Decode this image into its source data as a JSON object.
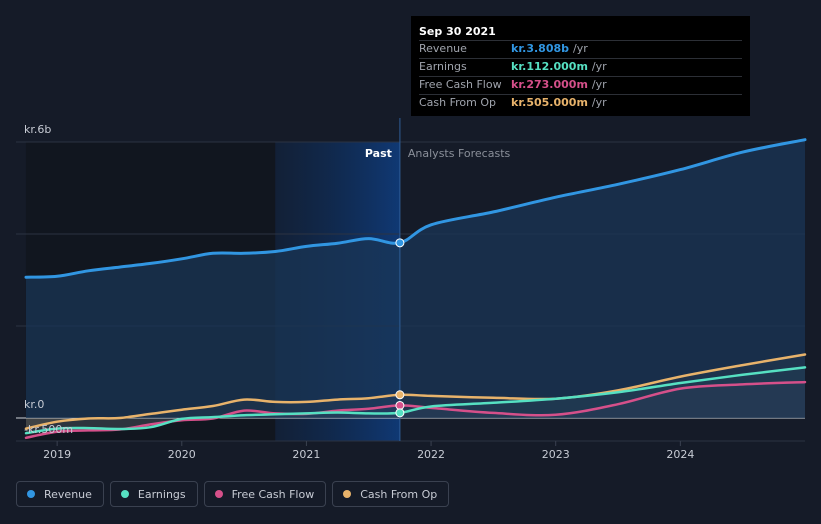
{
  "chart_data": {
    "type": "area",
    "y_axis": {
      "top_label": "kr.6b",
      "zero_label": "kr.0",
      "bottom_label": "-kr.500m",
      "ylim": [
        -500,
        6000
      ]
    },
    "x_ticks": [
      "2019",
      "2020",
      "2021",
      "2022",
      "2023",
      "2024"
    ],
    "x_tick_years": [
      2019,
      2020,
      2021,
      2022,
      2023,
      2024
    ],
    "xlim": [
      2018.67,
      2025.0
    ],
    "divider_x": 2021.75,
    "past_shade_start_x": 2020.75,
    "past_label": "Past",
    "forecast_label": "Analysts Forecasts",
    "series": [
      {
        "name": "Revenue",
        "color": "#3196e2",
        "fill": true,
        "points": [
          [
            2018.75,
            3060
          ],
          [
            2019.0,
            3080
          ],
          [
            2019.25,
            3200
          ],
          [
            2019.5,
            3280
          ],
          [
            2019.75,
            3360
          ],
          [
            2020.0,
            3460
          ],
          [
            2020.25,
            3580
          ],
          [
            2020.5,
            3580
          ],
          [
            2020.75,
            3620
          ],
          [
            2021.0,
            3730
          ],
          [
            2021.25,
            3800
          ],
          [
            2021.5,
            3900
          ],
          [
            2021.75,
            3808
          ],
          [
            2022.0,
            4200
          ],
          [
            2022.5,
            4480
          ],
          [
            2023.0,
            4800
          ],
          [
            2023.5,
            5080
          ],
          [
            2024.0,
            5400
          ],
          [
            2024.5,
            5780
          ],
          [
            2025.0,
            6050
          ]
        ]
      },
      {
        "name": "Earnings",
        "color": "#56e0c2",
        "fill": false,
        "points": [
          [
            2018.75,
            -330
          ],
          [
            2019.0,
            -230
          ],
          [
            2019.25,
            -220
          ],
          [
            2019.5,
            -240
          ],
          [
            2019.75,
            -200
          ],
          [
            2020.0,
            -20
          ],
          [
            2020.25,
            20
          ],
          [
            2020.5,
            60
          ],
          [
            2020.75,
            80
          ],
          [
            2021.0,
            100
          ],
          [
            2021.25,
            120
          ],
          [
            2021.5,
            100
          ],
          [
            2021.75,
            112
          ],
          [
            2022.0,
            250
          ],
          [
            2022.5,
            330
          ],
          [
            2023.0,
            420
          ],
          [
            2023.5,
            560
          ],
          [
            2024.0,
            760
          ],
          [
            2024.5,
            940
          ],
          [
            2025.0,
            1100
          ]
        ]
      },
      {
        "name": "Free Cash Flow",
        "color": "#d5508a",
        "fill": false,
        "points": [
          [
            2018.75,
            -430
          ],
          [
            2019.0,
            -300
          ],
          [
            2019.25,
            -270
          ],
          [
            2019.5,
            -250
          ],
          [
            2019.75,
            -140
          ],
          [
            2020.0,
            -50
          ],
          [
            2020.25,
            -10
          ],
          [
            2020.5,
            160
          ],
          [
            2020.75,
            100
          ],
          [
            2021.0,
            90
          ],
          [
            2021.25,
            160
          ],
          [
            2021.5,
            200
          ],
          [
            2021.75,
            273
          ],
          [
            2022.0,
            220
          ],
          [
            2022.5,
            110
          ],
          [
            2023.0,
            70
          ],
          [
            2023.5,
            300
          ],
          [
            2024.0,
            640
          ],
          [
            2024.5,
            730
          ],
          [
            2025.0,
            780
          ]
        ]
      },
      {
        "name": "Cash From Op",
        "color": "#e8b36b",
        "fill": false,
        "points": [
          [
            2018.75,
            -230
          ],
          [
            2019.0,
            -80
          ],
          [
            2019.25,
            -10
          ],
          [
            2019.5,
            0
          ],
          [
            2019.75,
            90
          ],
          [
            2020.0,
            180
          ],
          [
            2020.25,
            260
          ],
          [
            2020.5,
            400
          ],
          [
            2020.75,
            350
          ],
          [
            2021.0,
            350
          ],
          [
            2021.25,
            400
          ],
          [
            2021.5,
            430
          ],
          [
            2021.75,
            505
          ],
          [
            2022.0,
            480
          ],
          [
            2022.5,
            440
          ],
          [
            2023.0,
            420
          ],
          [
            2023.5,
            600
          ],
          [
            2024.0,
            900
          ],
          [
            2024.5,
            1150
          ],
          [
            2025.0,
            1380
          ]
        ]
      }
    ]
  },
  "tooltip": {
    "date": "Sep 30 2021",
    "rows": [
      {
        "label": "Revenue",
        "value": "kr.3.808b",
        "unit": "/yr",
        "color": "#3196e2"
      },
      {
        "label": "Earnings",
        "value": "kr.112.000m",
        "unit": "/yr",
        "color": "#56e0c2"
      },
      {
        "label": "Free Cash Flow",
        "value": "kr.273.000m",
        "unit": "/yr",
        "color": "#d5508a"
      },
      {
        "label": "Cash From Op",
        "value": "kr.505.000m",
        "unit": "/yr",
        "color": "#e8b36b"
      }
    ]
  },
  "legend": [
    {
      "label": "Revenue",
      "color": "#3196e2"
    },
    {
      "label": "Earnings",
      "color": "#56e0c2"
    },
    {
      "label": "Free Cash Flow",
      "color": "#d5508a"
    },
    {
      "label": "Cash From Op",
      "color": "#e8b36b"
    }
  ]
}
